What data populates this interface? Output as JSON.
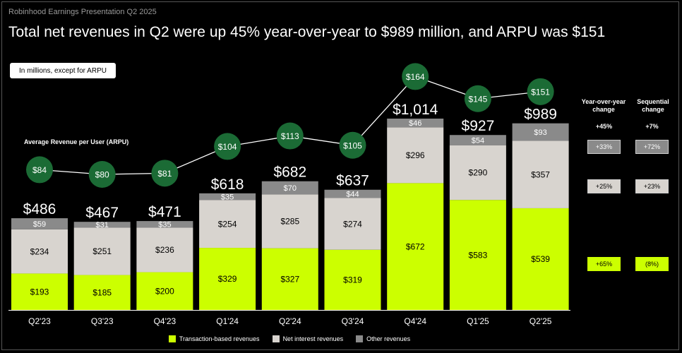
{
  "header": {
    "small_title": "Robinhood Earnings Presentation Q2 2025",
    "headline": "Total net revenues in Q2 were up 45% year-over-year to $989 million, and ARPU was $151",
    "note": "In millions, except for ARPU"
  },
  "colors": {
    "transaction": "#ccff00",
    "net_interest": "#d8d4cf",
    "other": "#8a8a8a",
    "arpu_circle": "#1b6b35"
  },
  "chart_data": {
    "type": "bar",
    "stacked": true,
    "categories": [
      "Q2'23",
      "Q3'23",
      "Q4'23",
      "Q1'24",
      "Q2'24",
      "Q3'24",
      "Q4'24",
      "Q1'25",
      "Q2'25"
    ],
    "series": [
      {
        "name": "Transaction-based revenues",
        "values": [
          193,
          185,
          200,
          329,
          327,
          319,
          672,
          583,
          539
        ],
        "labels": [
          "$193",
          "$185",
          "$200",
          "$329",
          "$327",
          "$319",
          "$672",
          "$583",
          "$539"
        ]
      },
      {
        "name": "Net interest revenues",
        "values": [
          234,
          251,
          236,
          254,
          285,
          274,
          296,
          290,
          357
        ],
        "labels": [
          "$234",
          "$251",
          "$236",
          "$254",
          "$285",
          "$274",
          "$296",
          "$290",
          "$357"
        ]
      },
      {
        "name": "Other revenues",
        "values": [
          59,
          31,
          35,
          35,
          70,
          44,
          46,
          54,
          93
        ],
        "labels": [
          "$59",
          "$31",
          "$35",
          "$35",
          "$70",
          "$44",
          "$46",
          "$54",
          "$93"
        ]
      }
    ],
    "totals": [
      486,
      467,
      471,
      618,
      682,
      637,
      1014,
      927,
      989
    ],
    "total_labels": [
      "$486",
      "$467",
      "$471",
      "$618",
      "$682",
      "$637",
      "$1,014",
      "$927",
      "$989"
    ],
    "ylim": [
      0,
      1100
    ],
    "arpu": {
      "title": "Average Revenue per User (ARPU)",
      "values": [
        84,
        80,
        81,
        104,
        113,
        105,
        164,
        145,
        151
      ],
      "labels": [
        "$84",
        "$80",
        "$81",
        "$104",
        "$113",
        "$105",
        "$164",
        "$145",
        "$151"
      ],
      "ylim": [
        60,
        180
      ]
    },
    "legend_placement": "bottom",
    "grid": false
  },
  "side_panel": {
    "yoy_header": "Year-over-year change",
    "seq_header": "Sequential change",
    "total_yoy": "+45%",
    "total_seq": "+7%",
    "other_yoy": "+33%",
    "other_seq": "+72%",
    "net_interest_yoy": "+25%",
    "net_interest_seq": "+23%",
    "transaction_yoy": "+65%",
    "transaction_seq": "(8%)"
  },
  "legend": {
    "transaction": "Transaction-based revenues",
    "net_interest": "Net interest revenues",
    "other": "Other revenues"
  }
}
